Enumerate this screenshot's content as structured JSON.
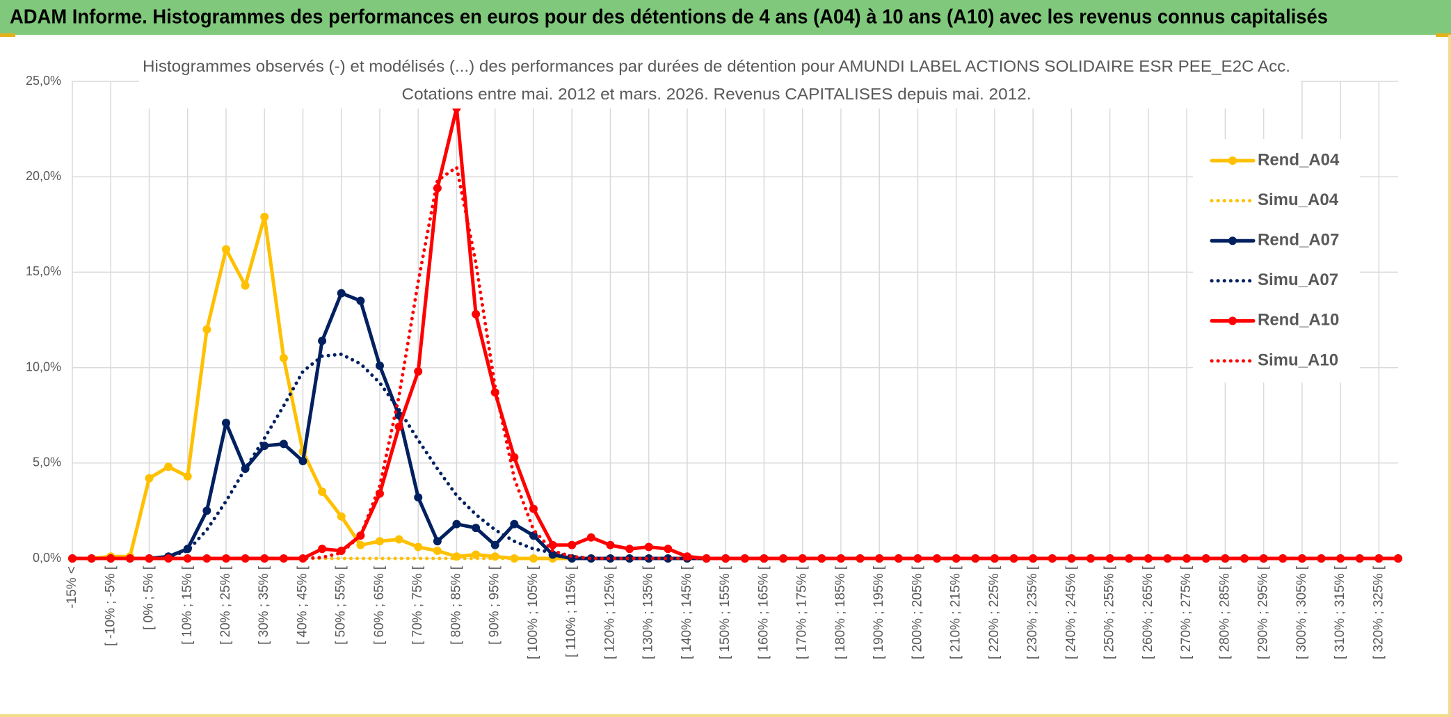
{
  "header": {
    "title": "ADAM Informe. Histogrammes des performances en euros pour des détentions de 4 ans (A04) à 10 ans (A10) avec les revenus connus capitalisés"
  },
  "chart_data": {
    "type": "line",
    "title": "Histogrammes observés (-) et modélisés (...) des performances par durées de détention pour AMUNDI LABEL ACTIONS SOLIDAIRE ESR PEE_E2C Acc.",
    "subtitle": "Cotations entre mai. 2012 et mars. 2026. Revenus CAPITALISES depuis mai. 2012.",
    "categories": [
      "-15% <",
      null,
      "[ -10% ; -5% [",
      null,
      "[ 0% ; 5% [",
      null,
      "[ 10% ; 15% [",
      null,
      "[ 20% ; 25% [",
      null,
      "[ 30% ; 35% [",
      null,
      "[ 40% ; 45% [",
      null,
      "[ 50% ; 55% [",
      null,
      "[ 60% ; 65% [",
      null,
      "[ 70% ; 75% [",
      null,
      "[ 80% ; 85% [",
      null,
      "[ 90% ; 95% [",
      null,
      "[ 100% ; 105% [",
      null,
      "[ 110% ; 115% [",
      null,
      "[ 120% ; 125% [",
      null,
      "[ 130% ; 135% [",
      null,
      "[ 140% ; 145% [",
      null,
      "[ 150% ; 155% [",
      null,
      "[ 160% ; 165% [",
      null,
      "[ 170% ; 175% [",
      null,
      "[ 180% ; 185% [",
      null,
      "[ 190% ; 195% [",
      null,
      "[ 200% ; 205% [",
      null,
      "[ 210% ; 215% [",
      null,
      "[ 220% ; 225% [",
      null,
      "[ 230% ; 235% [",
      null,
      "[ 240% ; 245% [",
      null,
      "[ 250% ; 255% [",
      null,
      "[ 260% ; 265% [",
      null,
      "[ 270% ; 275% [",
      null,
      "[ 280% ; 285% [",
      null,
      "[ 290% ; 295% [",
      null,
      "[ 300% ; 305% [",
      null,
      "[ 310% ; 315% [",
      null,
      "[ 320% ; 325% [",
      null
    ],
    "series": [
      {
        "name": "Rend_A04",
        "color": "#ffc000",
        "dotted": false,
        "markers": true,
        "values": [
          0,
          0,
          0.1,
          0.1,
          4.2,
          4.8,
          4.3,
          12.0,
          16.2,
          14.3,
          17.9,
          10.5,
          5.6,
          3.5,
          2.2,
          0.7,
          0.9,
          1.0,
          0.6,
          0.4,
          0.1,
          0.2,
          0.1,
          0,
          0,
          0,
          0,
          0,
          0,
          0,
          0,
          0,
          0,
          0,
          0,
          0,
          0,
          0,
          0,
          0,
          0,
          0,
          0,
          0,
          0,
          0,
          0,
          0,
          0,
          0,
          0,
          0,
          0,
          0,
          0,
          0,
          0,
          0,
          0,
          0,
          0,
          0,
          0,
          0,
          0,
          0,
          0,
          0,
          0,
          0
        ]
      },
      {
        "name": "Simu_A04",
        "color": "#ffc000",
        "dotted": true,
        "markers": false,
        "values": [
          0,
          0,
          0,
          0,
          0,
          0,
          0,
          0,
          0,
          0,
          0,
          0,
          0,
          0,
          0,
          0,
          0,
          0,
          0,
          0,
          0,
          0,
          0,
          0,
          0,
          0,
          0,
          0,
          0,
          0,
          0,
          0,
          0,
          0,
          0,
          0,
          0,
          0,
          0,
          0,
          0,
          0,
          0,
          0,
          0,
          0,
          0,
          0,
          0,
          0,
          0,
          0,
          0,
          0,
          0,
          0,
          0,
          0,
          0,
          0,
          0,
          0,
          0,
          0,
          0,
          0,
          0,
          0,
          0,
          0
        ]
      },
      {
        "name": "Rend_A07",
        "color": "#002060",
        "dotted": false,
        "markers": true,
        "values": [
          0,
          0,
          0,
          0,
          0,
          0.1,
          0.5,
          2.5,
          7.1,
          4.7,
          5.9,
          6.0,
          5.1,
          11.4,
          13.9,
          13.5,
          10.1,
          7.5,
          3.2,
          0.9,
          1.8,
          1.6,
          0.7,
          1.8,
          1.2,
          0.2,
          0,
          0,
          0,
          0,
          0,
          0,
          0,
          0,
          0,
          0,
          0,
          0,
          0,
          0,
          0,
          0,
          0,
          0,
          0,
          0,
          0,
          0,
          0,
          0,
          0,
          0,
          0,
          0,
          0,
          0,
          0,
          0,
          0,
          0,
          0,
          0,
          0,
          0,
          0,
          0,
          0,
          0,
          0,
          0
        ]
      },
      {
        "name": "Simu_A07",
        "color": "#002060",
        "dotted": true,
        "markers": false,
        "values": [
          0,
          0,
          0,
          0,
          0,
          0.1,
          0.4,
          1.5,
          3.0,
          4.7,
          6.3,
          8.0,
          9.8,
          10.6,
          10.7,
          10.2,
          9.2,
          7.8,
          6.2,
          4.7,
          3.3,
          2.3,
          1.5,
          0.9,
          0.5,
          0.3,
          0.1,
          0,
          0,
          0,
          0,
          0,
          0,
          0,
          0,
          0,
          0,
          0,
          0,
          0,
          0,
          0,
          0,
          0,
          0,
          0,
          0,
          0,
          0,
          0,
          0,
          0,
          0,
          0,
          0,
          0,
          0,
          0,
          0,
          0,
          0,
          0,
          0,
          0,
          0,
          0,
          0,
          0,
          0,
          0
        ]
      },
      {
        "name": "Rend_A10",
        "color": "#ff0000",
        "dotted": false,
        "markers": true,
        "values": [
          0,
          0,
          0,
          0,
          0,
          0,
          0,
          0,
          0,
          0,
          0,
          0,
          0,
          0.5,
          0.4,
          1.2,
          3.4,
          6.9,
          9.8,
          19.4,
          23.6,
          12.8,
          8.7,
          5.3,
          2.6,
          0.7,
          0.7,
          1.1,
          0.7,
          0.5,
          0.6,
          0.5,
          0.1,
          0,
          0,
          0,
          0,
          0,
          0,
          0,
          0,
          0,
          0,
          0,
          0,
          0,
          0,
          0,
          0,
          0,
          0,
          0,
          0,
          0,
          0,
          0,
          0,
          0,
          0,
          0,
          0,
          0,
          0,
          0,
          0,
          0,
          0,
          0,
          0,
          0
        ]
      },
      {
        "name": "Simu_A10",
        "color": "#ff0000",
        "dotted": true,
        "markers": false,
        "values": [
          0,
          0,
          0,
          0,
          0,
          0,
          0,
          0,
          0,
          0,
          0,
          0,
          0,
          0.05,
          0.3,
          1.2,
          3.8,
          8.5,
          14.5,
          19.8,
          20.5,
          15.5,
          9.0,
          4.2,
          1.5,
          0.4,
          0.1,
          0,
          0,
          0,
          0,
          0,
          0,
          0,
          0,
          0,
          0,
          0,
          0,
          0,
          0,
          0,
          0,
          0,
          0,
          0,
          0,
          0,
          0,
          0,
          0,
          0,
          0,
          0,
          0,
          0,
          0,
          0,
          0,
          0,
          0,
          0,
          0,
          0,
          0,
          0,
          0,
          0,
          0,
          0
        ]
      }
    ],
    "ylim": [
      0,
      25
    ],
    "yticks": [
      {
        "value": 0,
        "label": "0,0%"
      },
      {
        "value": 5,
        "label": "5,0%"
      },
      {
        "value": 10,
        "label": "10,0%"
      },
      {
        "value": 15,
        "label": "15,0%"
      },
      {
        "value": 20,
        "label": "20,0%"
      },
      {
        "value": 25,
        "label": "25,0%"
      }
    ],
    "grid": true,
    "legend": "right"
  }
}
